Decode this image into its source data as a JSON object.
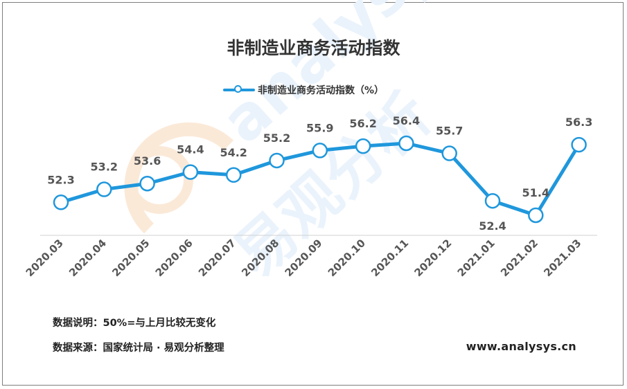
{
  "chart_data": {
    "type": "line",
    "title": "非制造业商务活动指数",
    "categories": [
      "2020.03",
      "2020.04",
      "2020.05",
      "2020.06",
      "2020.07",
      "2020.08",
      "2020.09",
      "2020.10",
      "2020.11",
      "2020.12",
      "2021.01",
      "2021.02",
      "2021.03"
    ],
    "series": [
      {
        "name": "非制造业商务活动指数（%）",
        "values": [
          52.3,
          53.2,
          53.6,
          54.4,
          54.2,
          55.2,
          55.9,
          56.2,
          56.4,
          55.7,
          52.4,
          51.4,
          56.3
        ],
        "color": "#1f97dc"
      }
    ],
    "legend_position": "top-center",
    "grid": false
  },
  "notes": {
    "explain": "数据说明：50%=与上月比较无变化",
    "source": "数据来源：国家统计局 · 易观分析整理",
    "website": "www.analysys.cn"
  },
  "watermark": {
    "brand": "analysys",
    "chinese": "易观分析"
  }
}
